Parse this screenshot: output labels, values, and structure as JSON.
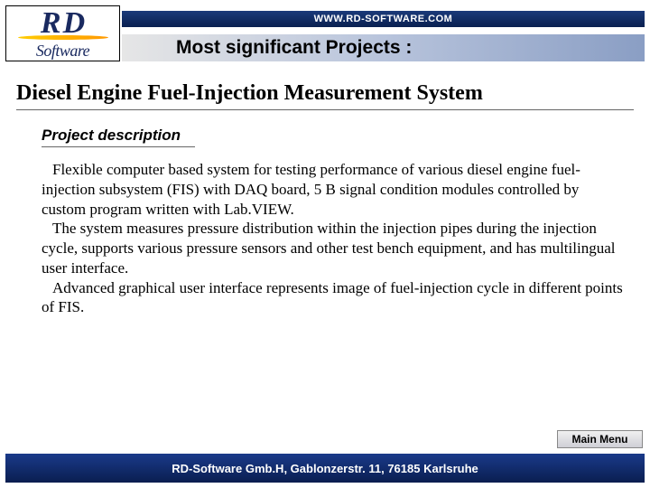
{
  "header": {
    "url": "WWW.RD-SOFTWARE.COM",
    "subtitle": "Most significant Projects :"
  },
  "logo": {
    "letter1": "R",
    "letter2": "D",
    "word": "Software"
  },
  "project": {
    "title": "Diesel Engine Fuel-Injection Measurement System",
    "section_header": "Project description",
    "para1": "Flexible computer based system for testing performance of various diesel engine fuel-injection subsystem (FIS) with DAQ board, 5 B signal condition modules controlled by custom program written with Lab.VIEW.",
    "para2": "The system measures pressure distribution within the injection pipes during the injection cycle, supports various pressure sensors and other test bench equipment, and has multilingual user interface.",
    "para3": "Advanced graphical user interface represents image of fuel-injection cycle in different points of FIS."
  },
  "nav": {
    "main_menu_label": "Main Menu"
  },
  "footer": {
    "text": "RD-Software Gmb.H, Gablonzerstr. 11, 76185 Karlsruhe"
  },
  "colors": {
    "dark_blue": "#0a2050",
    "mid_blue": "#1a3a8a",
    "grad_light": "#e6e6e6",
    "grad_mid": "#b8c4dc",
    "logo_text": "#1a2a60",
    "swoosh": "#ff9900"
  }
}
